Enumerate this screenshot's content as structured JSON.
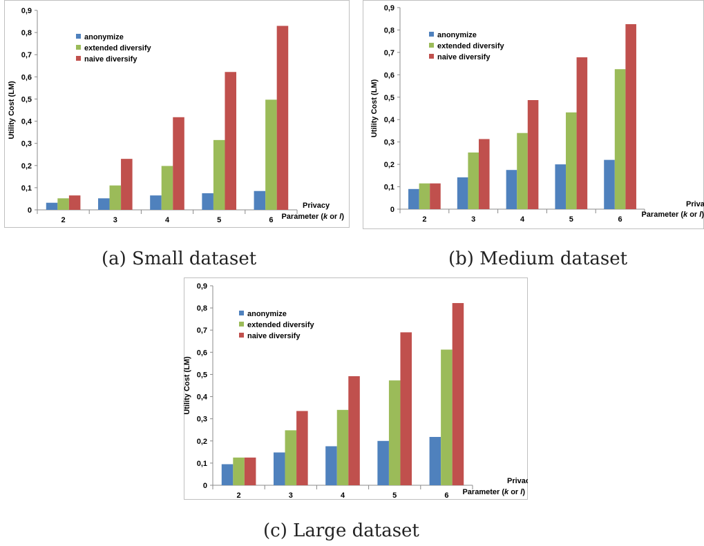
{
  "colors": {
    "anonymize": "#4f81bd",
    "extended diversify": "#9bbb59",
    "naive diversify": "#c0504d",
    "axis": "#888888",
    "frame": "#bfbfbf",
    "text": "#000000"
  },
  "chart_data": [
    {
      "type": "bar",
      "caption": "(a) Small dataset",
      "categories": [
        "2",
        "3",
        "4",
        "5",
        "6"
      ],
      "series": [
        {
          "name": "anonymize",
          "values": [
            0.032,
            0.052,
            0.065,
            0.075,
            0.085
          ]
        },
        {
          "name": "extended diversify",
          "values": [
            0.052,
            0.11,
            0.198,
            0.315,
            0.497
          ]
        },
        {
          "name": "naive diversify",
          "values": [
            0.065,
            0.23,
            0.418,
            0.622,
            0.83
          ]
        }
      ],
      "title": "",
      "xlabel_line1": "Privacy",
      "xlabel_line2_prefix": "Parameter (",
      "xlabel_k": "k",
      "xlabel_or": " or ",
      "xlabel_l": "l",
      "xlabel_close": ")",
      "ylabel": "Utility Cost (LM)",
      "ylim": [
        0,
        0.9
      ],
      "yticks": [
        "0",
        "0,1",
        "0,2",
        "0,3",
        "0,4",
        "0,5",
        "0,6",
        "0,7",
        "0,8",
        "0,9"
      ],
      "legend_position": "top-left",
      "grid": false
    },
    {
      "type": "bar",
      "caption": "(b) Medium dataset",
      "categories": [
        "2",
        "3",
        "4",
        "5",
        "6"
      ],
      "series": [
        {
          "name": "anonymize",
          "values": [
            0.09,
            0.142,
            0.175,
            0.2,
            0.22
          ]
        },
        {
          "name": "extended diversify",
          "values": [
            0.115,
            0.253,
            0.34,
            0.432,
            0.625
          ]
        },
        {
          "name": "naive diversify",
          "values": [
            0.115,
            0.313,
            0.487,
            0.678,
            0.826
          ]
        }
      ],
      "title": "",
      "xlabel_line1": "Privacy",
      "xlabel_line2_prefix": "Parameter (",
      "xlabel_k": "k",
      "xlabel_or": " or ",
      "xlabel_l": "l",
      "xlabel_close": ")",
      "ylabel": "Utility Cost (LM)",
      "ylim": [
        0,
        0.9
      ],
      "yticks": [
        "0",
        "0,1",
        "0,2",
        "0,3",
        "0,4",
        "0,5",
        "0,6",
        "0,7",
        "0,8",
        "0,9"
      ],
      "legend_position": "top-left",
      "grid": false
    },
    {
      "type": "bar",
      "caption": "(c) Large dataset",
      "categories": [
        "2",
        "3",
        "4",
        "5",
        "6"
      ],
      "series": [
        {
          "name": "anonymize",
          "values": [
            0.095,
            0.148,
            0.176,
            0.2,
            0.218
          ]
        },
        {
          "name": "extended diversify",
          "values": [
            0.125,
            0.248,
            0.34,
            0.473,
            0.612
          ]
        },
        {
          "name": "naive diversify",
          "values": [
            0.125,
            0.335,
            0.492,
            0.69,
            0.822
          ]
        }
      ],
      "title": "",
      "xlabel_line1": "Privacy",
      "xlabel_line2_prefix": "Parameter (",
      "xlabel_k": "k",
      "xlabel_or": " or ",
      "xlabel_l": "l",
      "xlabel_close": ")",
      "ylabel": "Utility Cost (LM)",
      "ylim": [
        0,
        0.9
      ],
      "yticks": [
        "0",
        "0,1",
        "0,2",
        "0,3",
        "0,4",
        "0,5",
        "0,6",
        "0,7",
        "0,8",
        "0,9"
      ],
      "legend_position": "top-left",
      "grid": false
    }
  ]
}
